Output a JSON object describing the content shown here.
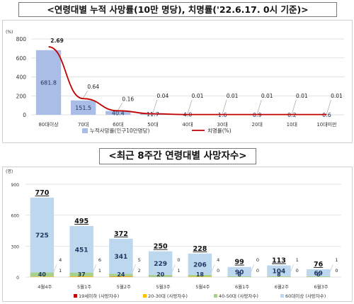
{
  "chart_data": [
    {
      "type": "bar",
      "title": "<연령대별 누적 사망률(10만 명당), 치명률('22.6.17. 0시 기준)>",
      "ylabel": "(%)",
      "ylim": [
        0,
        800
      ],
      "yticks": [
        "0",
        "200",
        "400",
        "600",
        "800"
      ],
      "categories": [
        "80대이상",
        "70대",
        "60대",
        "50대",
        "40대",
        "30대",
        "20대",
        "10대",
        "10대미만"
      ],
      "series": [
        {
          "name": "누적사망률(인구10만명당)",
          "type": "bar",
          "color": "#aabde6",
          "values": [
            681.8,
            151.5,
            40.4,
            11.7,
            4.0,
            1.6,
            0.9,
            0.2,
            0.6
          ],
          "labels": [
            "681.8",
            "151.5",
            "40.4",
            "11.7",
            "4.0",
            "1.6",
            "0.9",
            "0.2",
            "0.6"
          ]
        },
        {
          "name": "치명률(%)",
          "type": "line",
          "color": "#c00000",
          "values": [
            2.69,
            0.64,
            0.16,
            0.04,
            0.01,
            0.01,
            0.01,
            0.01,
            0.01
          ],
          "labels": [
            "2.69",
            "0.64",
            "0.16",
            "0.04",
            "0.01",
            "0.01",
            "0.01",
            "0.01",
            "0.01"
          ]
        }
      ],
      "legend_position": "bottom",
      "grid": true
    },
    {
      "type": "bar",
      "title": "<최근 8주간 연령대별 사망자수>",
      "ylabel": "(명)",
      "ylim": [
        0,
        900
      ],
      "yticks": [
        "0",
        "300",
        "600",
        "900"
      ],
      "stacked": true,
      "categories": [
        "4월4주",
        "5월1주",
        "5월2주",
        "5월3주",
        "5월4주",
        "6월1주",
        "6월2주",
        "6월3주"
      ],
      "totals": [
        770,
        495,
        372,
        250,
        228,
        99,
        113,
        76
      ],
      "total_labels": [
        "770",
        "495",
        "372",
        "250",
        "228",
        "99",
        "113",
        "76"
      ],
      "series": [
        {
          "name": "19세이하 (사망자수)",
          "color": "#c00000",
          "values": [
            1,
            1,
            2,
            1,
            0,
            0,
            0,
            0
          ]
        },
        {
          "name": "20-30대 (사망자수)",
          "color": "#ffc000",
          "values": [
            4,
            6,
            5,
            0,
            4,
            0,
            1,
            1
          ]
        },
        {
          "name": "40-50대 (사망자수)",
          "color": "#a9d18e",
          "values": [
            40,
            37,
            24,
            20,
            18,
            8,
            8,
            6
          ]
        },
        {
          "name": "60대이상 (사망자수)",
          "color": "#bdd7ee",
          "values": [
            725,
            451,
            341,
            229,
            206,
            90,
            104,
            69
          ]
        }
      ],
      "legend_position": "bottom",
      "grid": true
    }
  ]
}
